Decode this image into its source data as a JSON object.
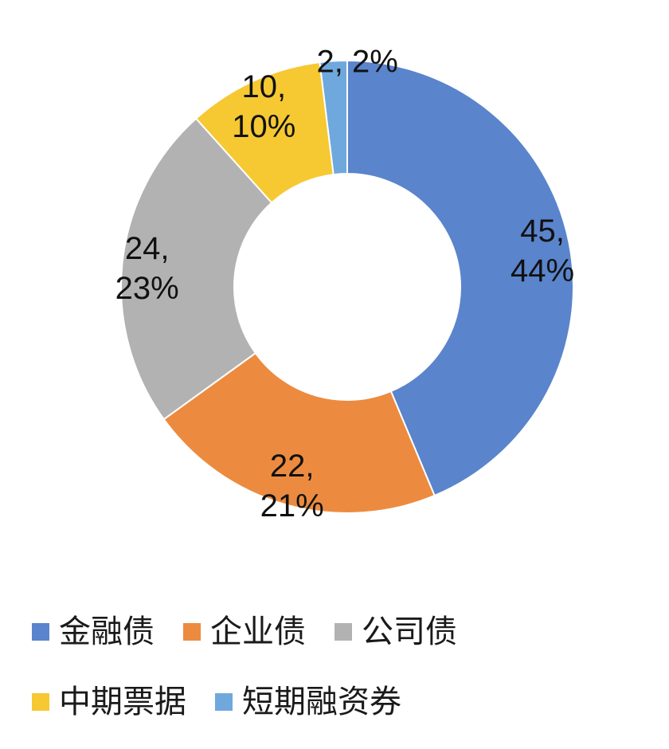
{
  "chart_data": {
    "type": "pie",
    "donut": true,
    "categories": [
      "金融债",
      "企业债",
      "公司债",
      "中期票据",
      "短期融资券"
    ],
    "values": [
      45,
      22,
      24,
      10,
      2
    ],
    "percents": [
      "44%",
      "21%",
      "23%",
      "10%",
      "2%"
    ],
    "colors": [
      "#5a84cc",
      "#ec8b3f",
      "#b2b2b2",
      "#f6c832",
      "#6fa8dd"
    ],
    "data_labels": [
      {
        "value": "45,",
        "percent": "44%"
      },
      {
        "value": "22,",
        "percent": "21%"
      },
      {
        "value": "24,",
        "percent": "23%"
      },
      {
        "value": "10,",
        "percent": "10%"
      },
      {
        "value": "2,",
        "percent": "2%"
      }
    ],
    "legend_position": "bottom"
  }
}
